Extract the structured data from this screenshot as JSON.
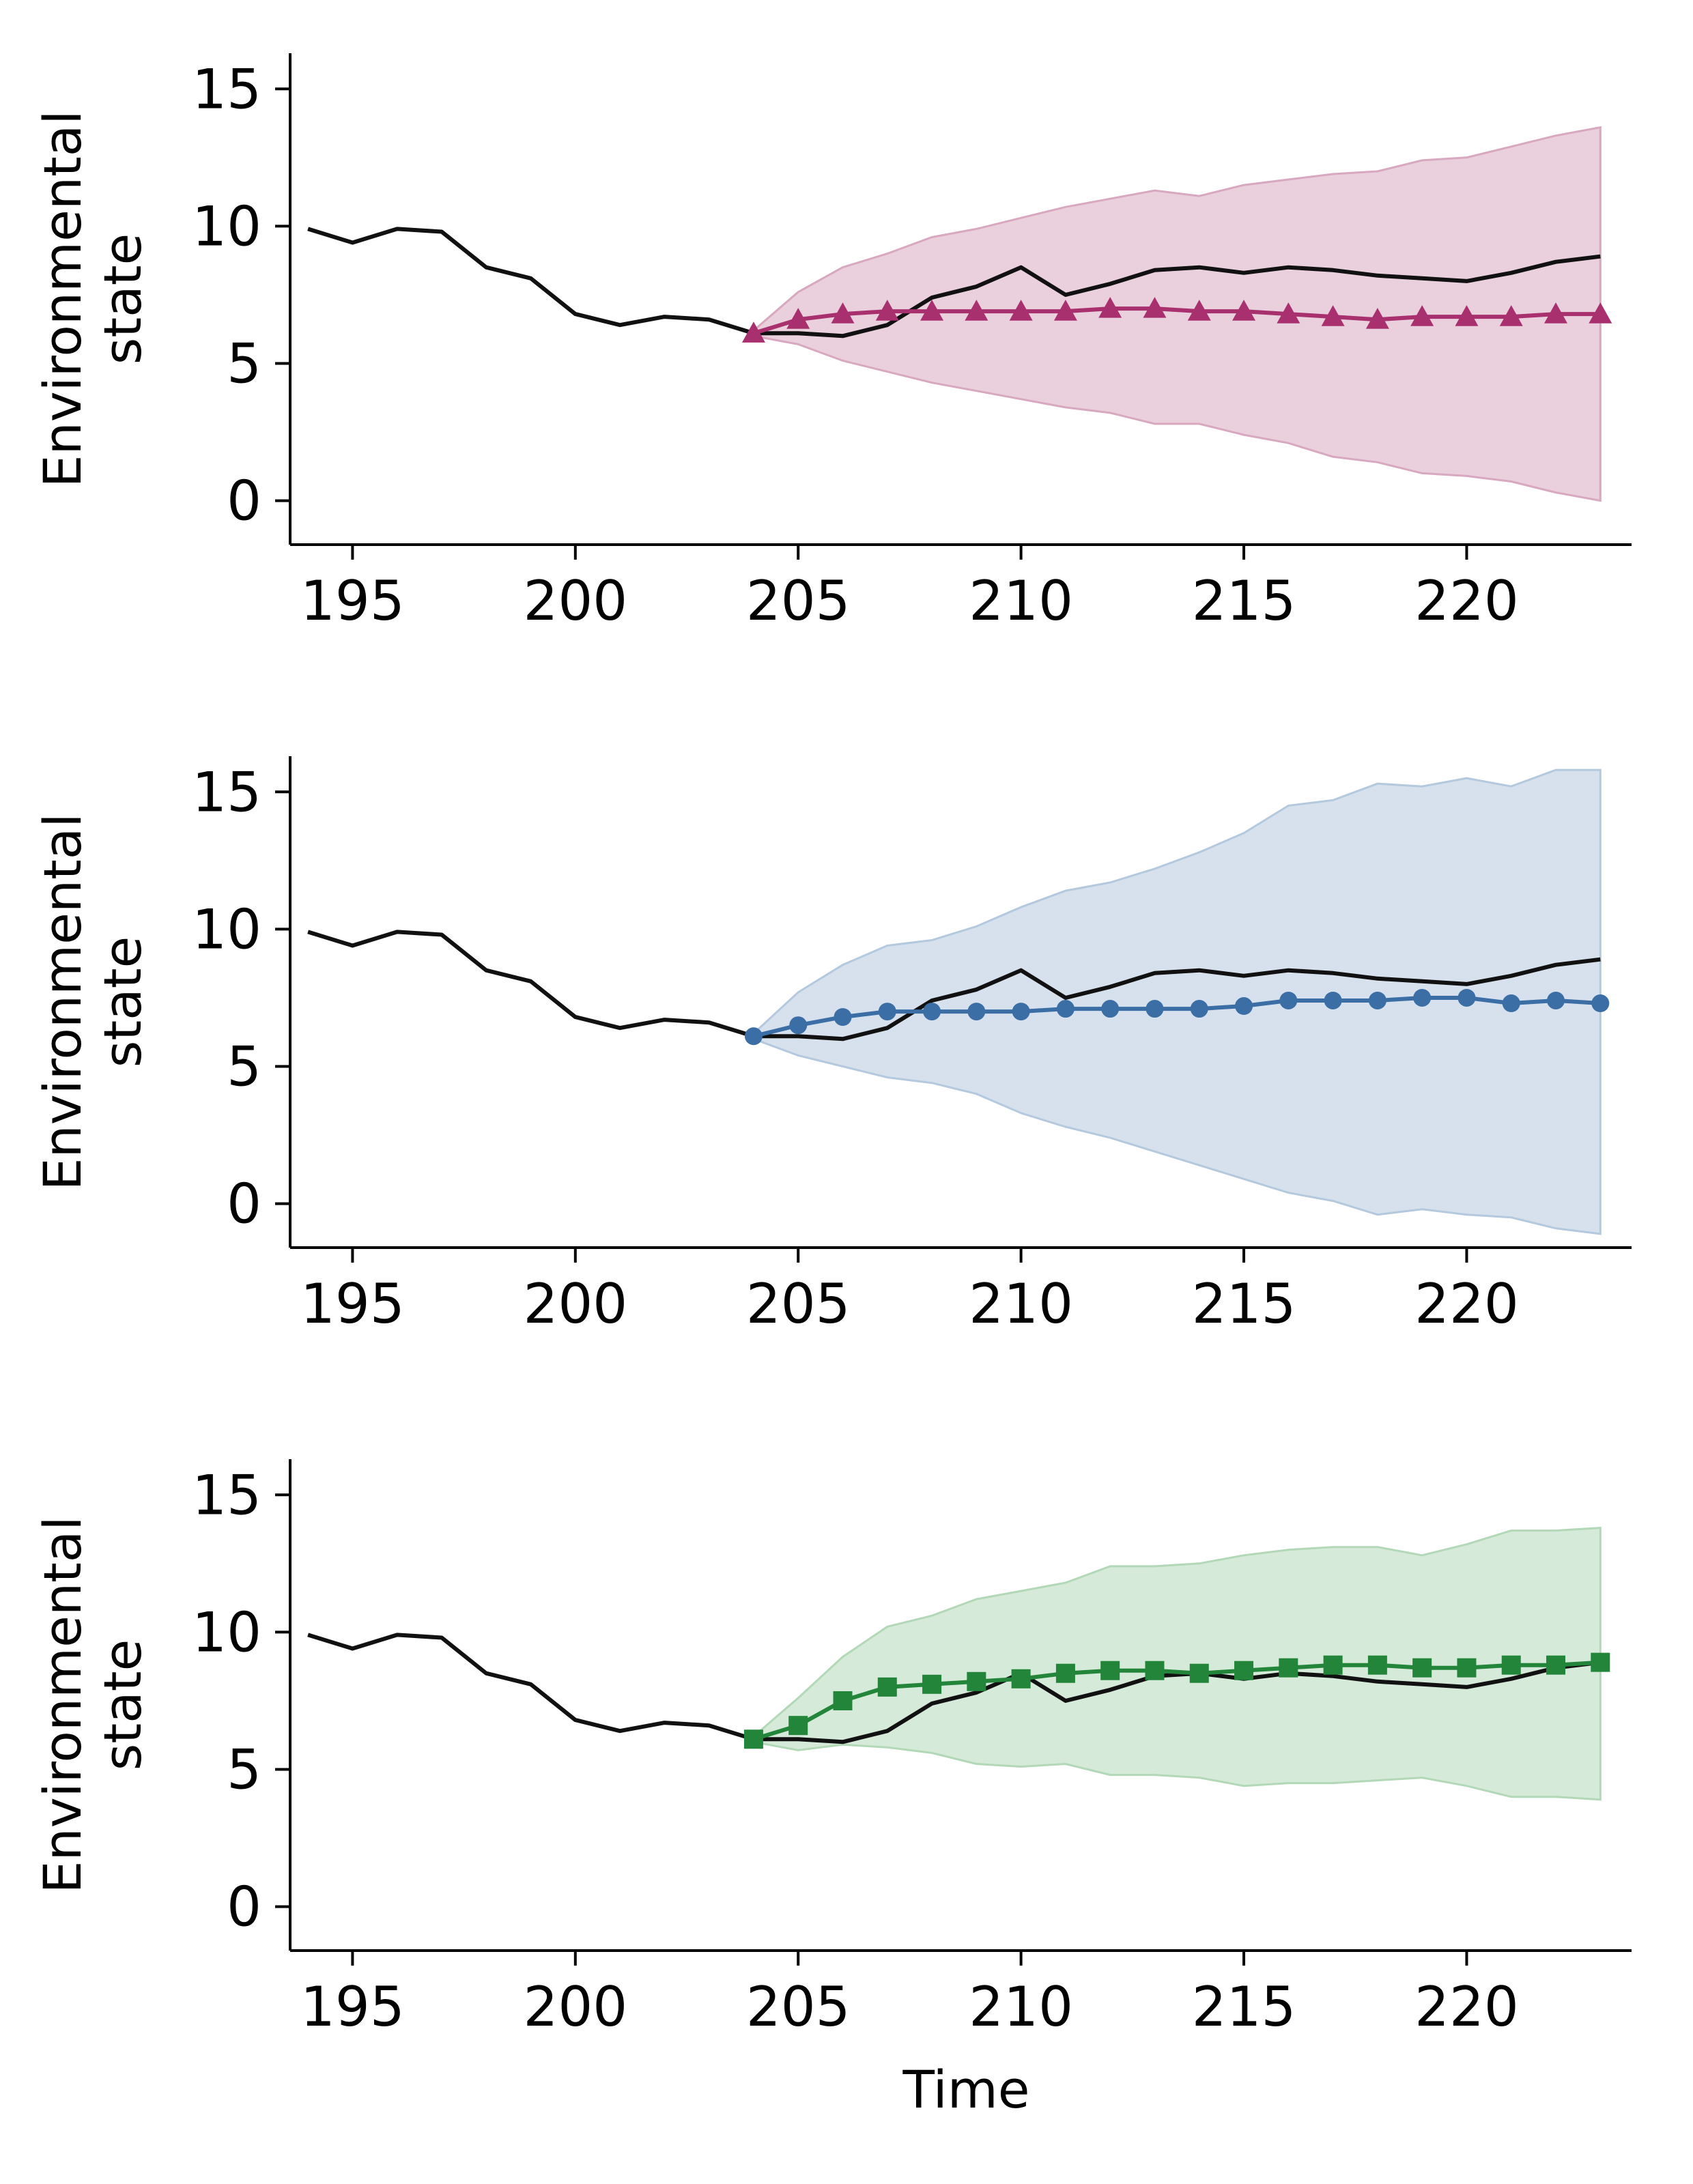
{
  "chart_data": [
    {
      "type": "line",
      "xlabel": "",
      "ylabel": "Environmental state",
      "ylabel_lines": [
        "Environmental",
        "state"
      ],
      "xlim": [
        193.6,
        223.7
      ],
      "ylim": [
        -1.6,
        16.3
      ],
      "xticks": [
        "195",
        "200",
        "205",
        "210",
        "215",
        "220"
      ],
      "yticks": [
        "0",
        "5",
        "10",
        "15"
      ],
      "observed": {
        "x": [
          194,
          195,
          196,
          197,
          198,
          199,
          200,
          201,
          202,
          203,
          204,
          205,
          206,
          207,
          208,
          209,
          210,
          211,
          212,
          213,
          214,
          215,
          216,
          217,
          218,
          219,
          220,
          221,
          222,
          223
        ],
        "y": [
          9.9,
          9.4,
          9.9,
          9.8,
          8.5,
          8.1,
          6.8,
          6.4,
          6.7,
          6.6,
          6.1,
          6.1,
          6.0,
          6.4,
          7.4,
          7.8,
          8.5,
          7.5,
          7.9,
          8.4,
          8.5,
          8.3,
          8.5,
          8.4,
          8.2,
          8.1,
          8.0,
          8.3,
          8.7,
          8.9
        ]
      },
      "forecast": {
        "marker": "triangle",
        "color": "#a8306f",
        "band_color": "#d8a8c0",
        "x": [
          204,
          205,
          206,
          207,
          208,
          209,
          210,
          211,
          212,
          213,
          214,
          215,
          216,
          217,
          218,
          219,
          220,
          221,
          222,
          223
        ],
        "y": [
          6.1,
          6.6,
          6.8,
          6.9,
          6.9,
          6.9,
          6.9,
          6.9,
          7.0,
          7.0,
          6.9,
          6.9,
          6.8,
          6.7,
          6.6,
          6.7,
          6.7,
          6.7,
          6.8,
          6.8
        ],
        "upper": [
          6.2,
          7.6,
          8.5,
          9.0,
          9.6,
          9.9,
          10.3,
          10.7,
          11.0,
          11.3,
          11.1,
          11.5,
          11.7,
          11.9,
          12.0,
          12.4,
          12.5,
          12.9,
          13.3,
          13.6
        ],
        "lower": [
          6.0,
          5.7,
          5.1,
          4.7,
          4.3,
          4.0,
          3.7,
          3.4,
          3.2,
          2.8,
          2.8,
          2.4,
          2.1,
          1.6,
          1.4,
          1.0,
          0.9,
          0.7,
          0.3,
          0.0
        ]
      }
    },
    {
      "type": "line",
      "xlabel": "",
      "ylabel": "Environmental state",
      "ylabel_lines": [
        "Environmental",
        "state"
      ],
      "xlim": [
        193.6,
        223.7
      ],
      "ylim": [
        -1.6,
        16.3
      ],
      "xticks": [
        "195",
        "200",
        "205",
        "210",
        "215",
        "220"
      ],
      "yticks": [
        "0",
        "5",
        "10",
        "15"
      ],
      "observed": {
        "x": [
          194,
          195,
          196,
          197,
          198,
          199,
          200,
          201,
          202,
          203,
          204,
          205,
          206,
          207,
          208,
          209,
          210,
          211,
          212,
          213,
          214,
          215,
          216,
          217,
          218,
          219,
          220,
          221,
          222,
          223
        ],
        "y": [
          9.9,
          9.4,
          9.9,
          9.8,
          8.5,
          8.1,
          6.8,
          6.4,
          6.7,
          6.6,
          6.1,
          6.1,
          6.0,
          6.4,
          7.4,
          7.8,
          8.5,
          7.5,
          7.9,
          8.4,
          8.5,
          8.3,
          8.5,
          8.4,
          8.2,
          8.1,
          8.0,
          8.3,
          8.7,
          8.9
        ]
      },
      "forecast": {
        "marker": "circle",
        "color": "#3a6ea5",
        "band_color": "#b4c8de",
        "x": [
          204,
          205,
          206,
          207,
          208,
          209,
          210,
          211,
          212,
          213,
          214,
          215,
          216,
          217,
          218,
          219,
          220,
          221,
          222,
          223
        ],
        "y": [
          6.1,
          6.5,
          6.8,
          7.0,
          7.0,
          7.0,
          7.0,
          7.1,
          7.1,
          7.1,
          7.1,
          7.2,
          7.4,
          7.4,
          7.4,
          7.5,
          7.5,
          7.3,
          7.4,
          7.3
        ],
        "upper": [
          6.2,
          7.7,
          8.7,
          9.4,
          9.6,
          10.1,
          10.8,
          11.4,
          11.7,
          12.2,
          12.8,
          13.5,
          14.5,
          14.7,
          15.3,
          15.2,
          15.5,
          15.2,
          15.8,
          15.8
        ],
        "lower": [
          6.0,
          5.4,
          5.0,
          4.6,
          4.4,
          4.0,
          3.3,
          2.8,
          2.4,
          1.9,
          1.4,
          0.9,
          0.4,
          0.1,
          -0.4,
          -0.2,
          -0.4,
          -0.5,
          -0.9,
          -1.1
        ]
      }
    },
    {
      "type": "line",
      "xlabel": "Time",
      "ylabel": "Environmental state",
      "ylabel_lines": [
        "Environmental",
        "state"
      ],
      "xlim": [
        193.6,
        223.7
      ],
      "ylim": [
        -1.6,
        16.3
      ],
      "xticks": [
        "195",
        "200",
        "205",
        "210",
        "215",
        "220"
      ],
      "yticks": [
        "0",
        "5",
        "10",
        "15"
      ],
      "observed": {
        "x": [
          194,
          195,
          196,
          197,
          198,
          199,
          200,
          201,
          202,
          203,
          204,
          205,
          206,
          207,
          208,
          209,
          210,
          211,
          212,
          213,
          214,
          215,
          216,
          217,
          218,
          219,
          220,
          221,
          222,
          223
        ],
        "y": [
          9.9,
          9.4,
          9.9,
          9.8,
          8.5,
          8.1,
          6.8,
          6.4,
          6.7,
          6.6,
          6.1,
          6.1,
          6.0,
          6.4,
          7.4,
          7.8,
          8.5,
          7.5,
          7.9,
          8.4,
          8.5,
          8.3,
          8.5,
          8.4,
          8.2,
          8.1,
          8.0,
          8.3,
          8.7,
          8.9
        ]
      },
      "forecast": {
        "marker": "square",
        "color": "#22853a",
        "band_color": "#b3d8b8",
        "x": [
          204,
          205,
          206,
          207,
          208,
          209,
          210,
          211,
          212,
          213,
          214,
          215,
          216,
          217,
          218,
          219,
          220,
          221,
          222,
          223
        ],
        "y": [
          6.1,
          6.6,
          7.5,
          8.0,
          8.1,
          8.2,
          8.3,
          8.5,
          8.6,
          8.6,
          8.5,
          8.6,
          8.7,
          8.8,
          8.8,
          8.7,
          8.7,
          8.8,
          8.8,
          8.9
        ],
        "upper": [
          6.2,
          7.6,
          9.1,
          10.2,
          10.6,
          11.2,
          11.5,
          11.8,
          12.4,
          12.4,
          12.5,
          12.8,
          13.0,
          13.1,
          13.1,
          12.8,
          13.2,
          13.7,
          13.7,
          13.8
        ],
        "lower": [
          6.0,
          5.7,
          5.9,
          5.8,
          5.6,
          5.2,
          5.1,
          5.2,
          4.8,
          4.8,
          4.7,
          4.4,
          4.5,
          4.5,
          4.6,
          4.7,
          4.4,
          4.0,
          4.0,
          3.9
        ]
      }
    }
  ]
}
